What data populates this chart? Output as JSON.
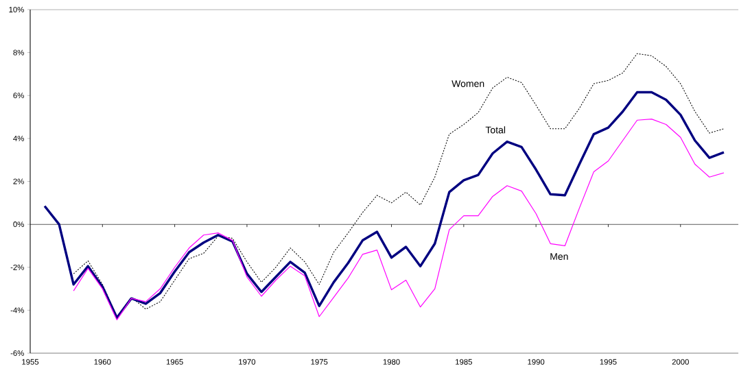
{
  "chart_data": {
    "type": "line",
    "xlim": [
      1955,
      2004
    ],
    "xticks": [
      1955,
      1960,
      1965,
      1970,
      1975,
      1980,
      1985,
      1990,
      1995,
      2000
    ],
    "ylim": [
      -6,
      10
    ],
    "yticks": [
      {
        "value": -6,
        "label": "-6%"
      },
      {
        "value": -4,
        "label": "-4%"
      },
      {
        "value": -2,
        "label": "-2%"
      },
      {
        "value": 0,
        "label": "0%"
      },
      {
        "value": 2,
        "label": "2%"
      },
      {
        "value": 4,
        "label": "4%"
      },
      {
        "value": 6,
        "label": "6%"
      },
      {
        "value": 8,
        "label": "8%"
      },
      {
        "value": 10,
        "label": "10%"
      }
    ],
    "marker": "none",
    "series": [
      {
        "name": "Women",
        "color": "#000000",
        "line_style": "dotted",
        "x": [
          1958,
          1959,
          1960,
          1961,
          1962,
          1963,
          1964,
          1965,
          1966,
          1967,
          1968,
          1969,
          1970,
          1971,
          1972,
          1973,
          1974,
          1975,
          1976,
          1977,
          1978,
          1979,
          1980,
          1981,
          1982,
          1983,
          1984,
          1985,
          1986,
          1987,
          1988,
          1989,
          1990,
          1991,
          1992,
          1993,
          1994,
          1995,
          1996,
          1997,
          1998,
          1999,
          2000,
          2001,
          2002,
          2003
        ],
        "values": [
          -2.3,
          -1.7,
          -2.8,
          -4.3,
          -3.4,
          -3.95,
          -3.6,
          -2.6,
          -1.6,
          -1.35,
          -0.55,
          -0.65,
          -1.75,
          -2.7,
          -2.0,
          -1.1,
          -1.75,
          -2.8,
          -1.3,
          -0.4,
          0.55,
          1.35,
          1.0,
          1.5,
          0.9,
          2.2,
          4.2,
          4.65,
          5.2,
          6.35,
          6.85,
          6.6,
          5.55,
          4.45,
          4.45,
          5.4,
          6.55,
          6.7,
          7.05,
          7.95,
          7.85,
          7.35,
          6.55,
          5.25,
          4.25,
          4.45
        ]
      },
      {
        "name": "Total",
        "color": "#000080",
        "line_style": "solid",
        "x": [
          1956,
          1957,
          1958,
          1959,
          1960,
          1961,
          1962,
          1963,
          1964,
          1965,
          1966,
          1967,
          1968,
          1969,
          1970,
          1971,
          1972,
          1973,
          1974,
          1975,
          1976,
          1977,
          1978,
          1979,
          1980,
          1981,
          1982,
          1983,
          1984,
          1985,
          1986,
          1987,
          1988,
          1989,
          1990,
          1991,
          1992,
          1993,
          1994,
          1995,
          1996,
          1997,
          1998,
          1999,
          2000,
          2001,
          2002,
          2003
        ],
        "values": [
          0.85,
          0.0,
          -2.8,
          -1.95,
          -2.9,
          -4.35,
          -3.45,
          -3.7,
          -3.2,
          -2.2,
          -1.3,
          -0.85,
          -0.5,
          -0.8,
          -2.3,
          -3.15,
          -2.45,
          -1.75,
          -2.25,
          -3.8,
          -2.7,
          -1.8,
          -0.75,
          -0.35,
          -1.55,
          -1.05,
          -1.95,
          -0.9,
          1.5,
          2.05,
          2.3,
          3.3,
          3.85,
          3.6,
          2.55,
          1.4,
          1.35,
          2.8,
          4.2,
          4.5,
          5.25,
          6.15,
          6.15,
          5.8,
          5.1,
          3.9,
          3.1,
          3.35
        ]
      },
      {
        "name": "Men",
        "color": "#ff00ff",
        "line_style": "solid",
        "x": [
          1958,
          1959,
          1960,
          1961,
          1962,
          1963,
          1964,
          1965,
          1966,
          1967,
          1968,
          1969,
          1970,
          1971,
          1972,
          1973,
          1974,
          1975,
          1976,
          1977,
          1978,
          1979,
          1980,
          1981,
          1982,
          1983,
          1984,
          1985,
          1986,
          1987,
          1988,
          1989,
          1990,
          1991,
          1992,
          1993,
          1994,
          1995,
          1996,
          1997,
          1998,
          1999,
          2000,
          2001,
          2002,
          2003
        ],
        "values": [
          -3.1,
          -2.05,
          -3.0,
          -4.45,
          -3.45,
          -3.6,
          -3.0,
          -2.0,
          -1.1,
          -0.5,
          -0.4,
          -0.75,
          -2.45,
          -3.35,
          -2.6,
          -1.95,
          -2.4,
          -4.3,
          -3.4,
          -2.5,
          -1.4,
          -1.2,
          -3.05,
          -2.6,
          -3.85,
          -3.0,
          -0.25,
          0.4,
          0.4,
          1.3,
          1.8,
          1.55,
          0.5,
          -0.9,
          -1.0,
          0.75,
          2.45,
          2.95,
          3.9,
          4.85,
          4.9,
          4.65,
          4.05,
          2.8,
          2.2,
          2.4
        ]
      }
    ]
  }
}
